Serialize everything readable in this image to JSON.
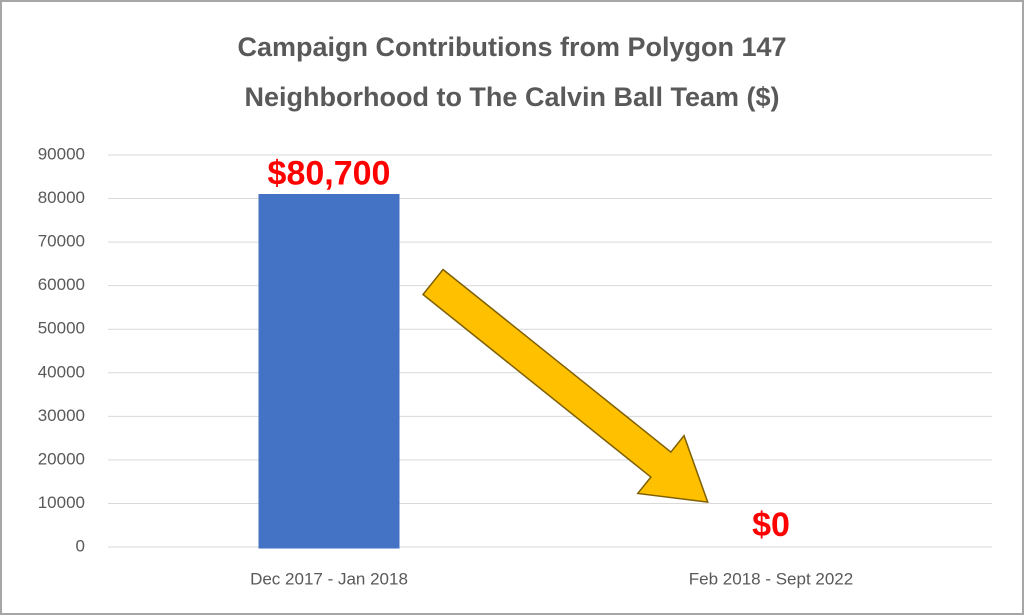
{
  "chart_data": {
    "type": "bar",
    "title": [
      "Campaign Contributions from Polygon 147",
      "Neighborhood to The Calvin Ball Team ($)"
    ],
    "categories": [
      "Dec 2017 - Jan 2018",
      "Feb 2018 - Sept 2022"
    ],
    "values": [
      80700,
      0
    ],
    "value_labels": [
      "$80,700",
      "$0"
    ],
    "color": "#4472c4",
    "ylim": [
      0,
      90000
    ],
    "yticks": [
      0,
      10000,
      20000,
      30000,
      40000,
      50000,
      60000,
      70000,
      80000,
      90000
    ],
    "grid": true
  }
}
